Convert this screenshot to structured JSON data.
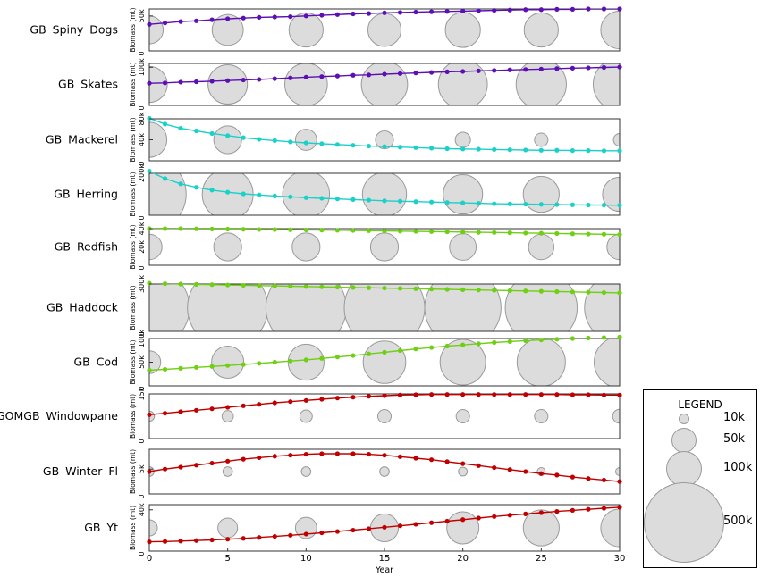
{
  "chart_data": {
    "type": "line",
    "x_axis": {
      "label": "Year",
      "ticks": [
        "0",
        "5",
        "10",
        "15",
        "20",
        "25",
        "30"
      ],
      "range": [
        0,
        30
      ]
    },
    "y_axis_label": "Biomass (mt)",
    "bubble_years": [
      0,
      5,
      10,
      15,
      20,
      25,
      30
    ],
    "panels": [
      {
        "name": "GB Spiny Dogs",
        "color": "#5b0fb4",
        "ylim": [
          0,
          60000
        ],
        "yticks": [
          {
            "v": 50000,
            "label": "50k"
          }
        ],
        "values": [
          38000,
          40000,
          42000,
          43000,
          44500,
          46000,
          47000,
          48000,
          48500,
          49000,
          50000,
          51000,
          52000,
          53000,
          53500,
          54500,
          55000,
          55500,
          56000,
          56500,
          57000,
          57500,
          58000,
          58500,
          59000,
          59000,
          59500,
          59500,
          60000,
          60000,
          60000
        ],
        "bubbles": [
          60000,
          75000,
          90000,
          85000,
          95000,
          90000,
          110000
        ]
      },
      {
        "name": "GB Skates",
        "color": "#5b0fb4",
        "ylim": [
          0,
          110000
        ],
        "yticks": [
          {
            "v": 100000,
            "label": "100k"
          }
        ],
        "values": [
          58000,
          59000,
          61000,
          62000,
          63500,
          65000,
          66500,
          68000,
          70000,
          72000,
          74000,
          75500,
          77000,
          79000,
          80000,
          82000,
          83500,
          85000,
          86500,
          88000,
          89000,
          90500,
          91500,
          93000,
          94000,
          95000,
          96500,
          97500,
          98500,
          99500,
          100500
        ],
        "bubbles": [
          100000,
          120000,
          140000,
          165000,
          185000,
          195000,
          215000
        ]
      },
      {
        "name": "GB Mackerel",
        "color": "#1bd1c7",
        "ylim": [
          0,
          80000
        ],
        "yticks": [
          {
            "v": 40000,
            "label": "40k"
          },
          {
            "v": 80000,
            "label": "80k"
          }
        ],
        "values": [
          81000,
          70000,
          62000,
          57000,
          52000,
          48000,
          44000,
          41000,
          38500,
          36000,
          34000,
          32500,
          31000,
          29500,
          28000,
          27000,
          26000,
          25000,
          24000,
          23000,
          22500,
          22000,
          21500,
          21000,
          20500,
          20000,
          20000,
          19500,
          19500,
          19000,
          19000
        ],
        "bubbles": [
          95000,
          60000,
          35000,
          25000,
          18000,
          14000,
          12000
        ]
      },
      {
        "name": "GB Herring",
        "color": "#1bd1c7",
        "ylim": [
          0,
          200000
        ],
        "yticks": [
          {
            "v": 200000,
            "label": "200k"
          }
        ],
        "values": [
          210000,
          175000,
          150000,
          133000,
          120000,
          110000,
          102000,
          97000,
          92000,
          88000,
          84000,
          81000,
          78000,
          75000,
          72000,
          69000,
          67000,
          65000,
          63000,
          61000,
          59000,
          57000,
          55000,
          54000,
          53000,
          52000,
          51000,
          50000,
          49000,
          48500,
          48000
        ],
        "bubbles": [
          420000,
          200000,
          170000,
          150000,
          120000,
          100000,
          90000
        ]
      },
      {
        "name": "GB Redfish",
        "color": "#6fcf12",
        "ylim": [
          0,
          40000
        ],
        "yticks": [
          {
            "v": 20000,
            "label": "20k"
          },
          {
            "v": 40000,
            "label": "40k"
          }
        ],
        "values": [
          40000,
          40000,
          40000,
          39800,
          39600,
          39500,
          39300,
          39100,
          39000,
          38800,
          38600,
          38400,
          38200,
          38000,
          37800,
          37500,
          37300,
          37000,
          36800,
          36500,
          36300,
          36000,
          35800,
          35500,
          35200,
          35000,
          34700,
          34400,
          34100,
          33900,
          33600
        ],
        "bubbles": [
          50000,
          60000,
          60000,
          60000,
          55000,
          50000,
          50000
        ]
      },
      {
        "name": "GB Haddock",
        "color": "#6fcf12",
        "ylim": [
          0,
          300000
        ],
        "yticks": [
          {
            "v": 300000,
            "label": "300k"
          }
        ],
        "values": [
          305000,
          302000,
          300000,
          298000,
          296000,
          294000,
          292000,
          290000,
          288000,
          286000,
          284000,
          282000,
          280000,
          278000,
          276000,
          274000,
          272000,
          270000,
          268000,
          266000,
          264000,
          262000,
          260000,
          258000,
          256000,
          254000,
          252000,
          250000,
          248000,
          246000,
          244000
        ],
        "bubbles": [
          500000,
          500000,
          500000,
          500000,
          450000,
          400000,
          380000
        ]
      },
      {
        "name": "GB Cod",
        "color": "#6fcf12",
        "ylim": [
          0,
          100000
        ],
        "yticks": [
          {
            "v": 50000,
            "label": "50k"
          },
          {
            "v": 100000,
            "label": "100k"
          }
        ],
        "values": [
          33000,
          35000,
          37000,
          39000,
          41000,
          43000,
          45000,
          47500,
          50000,
          52500,
          55000,
          58000,
          61000,
          64000,
          67500,
          71000,
          74500,
          78000,
          81000,
          84000,
          86500,
          89000,
          91500,
          93500,
          95500,
          97000,
          98500,
          100000,
          101000,
          102000,
          103000
        ],
        "bubbles": [
          40000,
          80000,
          100000,
          140000,
          160000,
          180000,
          200000
        ]
      },
      {
        "name": "GOMGB Windowpane",
        "color": "#c00000",
        "ylim": [
          0,
          15000
        ],
        "yticks": [
          {
            "v": 15000,
            "label": "15k"
          }
        ],
        "values": [
          8000,
          8500,
          9000,
          9500,
          10000,
          10500,
          11000,
          11500,
          12000,
          12400,
          12800,
          13200,
          13600,
          13900,
          14200,
          14400,
          14600,
          14700,
          14800,
          14800,
          14800,
          14800,
          14800,
          14800,
          14800,
          14800,
          14800,
          14700,
          14700,
          14600,
          14600
        ],
        "bubbles": [
          8000,
          10000,
          12000,
          14000,
          14000,
          14000,
          15000
        ]
      },
      {
        "name": "GB Winter Fl",
        "color": "#c00000",
        "ylim": [
          0,
          9000
        ],
        "yticks": [
          {
            "v": 5000,
            "label": "5k"
          }
        ],
        "values": [
          4500,
          5000,
          5400,
          5800,
          6200,
          6600,
          7000,
          7300,
          7600,
          7800,
          8000,
          8100,
          8100,
          8100,
          8000,
          7800,
          7500,
          7200,
          6900,
          6500,
          6100,
          5700,
          5300,
          4900,
          4500,
          4100,
          3800,
          3400,
          3100,
          2800,
          2500
        ],
        "bubbles": [
          7000,
          7000,
          7000,
          7000,
          6000,
          5000,
          5000
        ]
      },
      {
        "name": "GB Yt",
        "color": "#c00000",
        "ylim": [
          0,
          45000
        ],
        "yticks": [
          {
            "v": 40000,
            "label": "40k"
          }
        ],
        "values": [
          9000,
          9300,
          9700,
          10200,
          10800,
          11500,
          12300,
          13200,
          14200,
          15300,
          16500,
          17700,
          19000,
          20300,
          21700,
          23100,
          24500,
          26000,
          27500,
          29000,
          30500,
          32000,
          33500,
          34800,
          36000,
          37200,
          38400,
          39500,
          40500,
          41500,
          42500
        ],
        "bubbles": [
          20000,
          30000,
          35000,
          60000,
          80000,
          100000,
          110000
        ]
      }
    ],
    "legend": {
      "title": "LEGEND",
      "entries": [
        {
          "label": "10k",
          "value": 10000
        },
        {
          "label": "50k",
          "value": 50000
        },
        {
          "label": "100k",
          "value": 100000
        },
        {
          "label": "500k",
          "value": 500000
        }
      ]
    }
  }
}
